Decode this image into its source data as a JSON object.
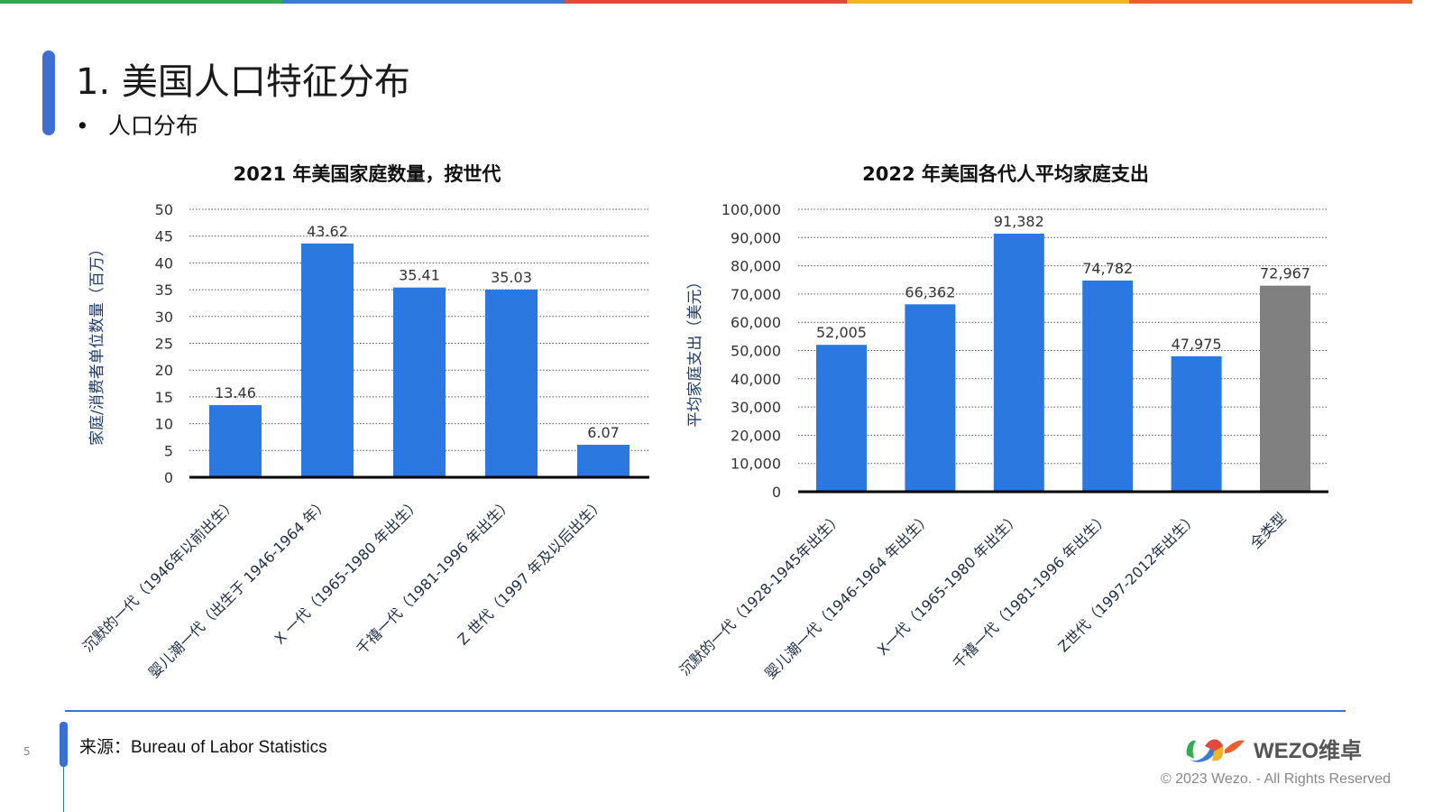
{
  "header": {
    "title": "1. 美国人口特征分布",
    "bullet": "人口分布"
  },
  "colors": {
    "stripe": [
      "#34a853",
      "#3b7bd4",
      "#e04a3c",
      "#f0b429",
      "#e8602c"
    ],
    "bar": "#2a78e0",
    "bar_total": "#808080"
  },
  "chart_data": [
    {
      "type": "bar",
      "title": "2021 年美国家庭数量，按世代",
      "ylabel": "家庭/消费者单位数量（百万）",
      "xlabel": "",
      "ylim": [
        0,
        50
      ],
      "yticks": [
        "0",
        "5",
        "10",
        "15",
        "20",
        "25",
        "30",
        "35",
        "40",
        "45",
        "50"
      ],
      "categories": [
        "沉默的一代（1946年以前出生）",
        "婴儿潮一代（出生于 1946-1964 年）",
        "X 一代（1965-1980 年出生）",
        "千禧一代（1981-1996 年出生）",
        "Z 世代（1997 年及以后出生）"
      ],
      "values": [
        13.46,
        43.62,
        35.41,
        35.03,
        6.07
      ],
      "labels": [
        "13.46",
        "43.62",
        "35.41",
        "35.03",
        "6.07"
      ],
      "grid": true
    },
    {
      "type": "bar",
      "title": "2022 年美国各代人平均家庭支出",
      "ylabel": "平均家庭支出（美元）",
      "xlabel": "",
      "ylim": [
        0,
        100000
      ],
      "yticks": [
        "0",
        "10,000",
        "20,000",
        "30,000",
        "40,000",
        "50,000",
        "60,000",
        "70,000",
        "80,000",
        "90,000",
        "100,000"
      ],
      "categories": [
        "沉默的一代（1928-1945年出生）",
        "婴儿潮一代（1946-1964 年出生）",
        "X一代（1965-1980 年出生）",
        "千禧一代（1981-1996 年出生）",
        "Z世代（1997-2012年出生）",
        "全类型"
      ],
      "values": [
        52005,
        66362,
        91382,
        74782,
        47975,
        72967
      ],
      "labels": [
        "52,005",
        "66,362",
        "91,382",
        "74,782",
        "47,975",
        "72,967"
      ],
      "grid": true
    }
  ],
  "footer": {
    "source": "来源：Bureau of Labor Statistics",
    "page": "5",
    "logo": "WEZO维卓",
    "copyright": "© 2023 Wezo. - All Rights Reserved",
    "watermark": "WEZO维卓"
  }
}
